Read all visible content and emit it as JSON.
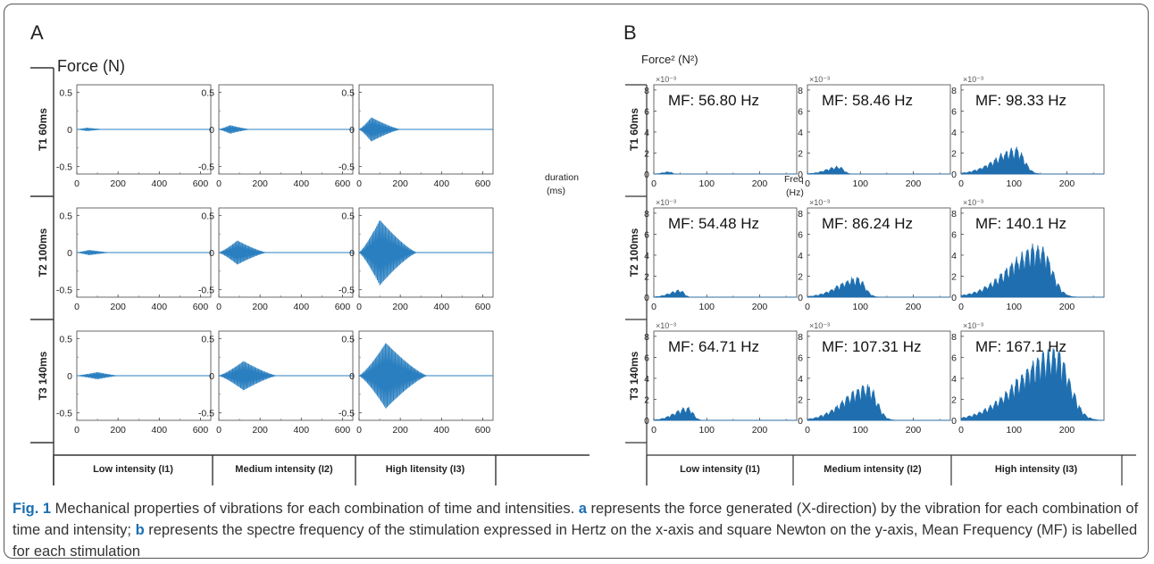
{
  "panels": {
    "a": "A",
    "b": "B"
  },
  "caption": {
    "fig": "Fig. 1",
    "lead": " Mechanical properties of vibrations for each combination of time and intensities. ",
    "a": "a",
    "a_text": " represents the force generated (X-direction) by the vibration for each combination of time and intensity; ",
    "b": "b",
    "b_text": " represents the spectre frequency of the stimulation expressed in Hertz on the x-axis and square Newton on the y-axis, Mean Frequency (MF) is labelled for each stimulation"
  },
  "chart_data": [
    {
      "type": "line",
      "panel": "A",
      "ylabel": "Force (N)",
      "xlabel": "duration (ms)",
      "xlim": [
        0,
        650
      ],
      "ylim": [
        -0.6,
        0.6
      ],
      "xticks": [
        0,
        200,
        400,
        600
      ],
      "yticks": [
        0.5,
        0,
        -0.5
      ],
      "xticks_minor": [
        100,
        300,
        500
      ],
      "yticks_minor": [
        0.25,
        -0.25
      ],
      "rows": [
        "T1 60ms",
        "T2 100ms",
        "T3 140ms"
      ],
      "columns": [
        "Low intensity (I1)",
        "Medium intensity (I2)",
        "High litensity (I3)"
      ],
      "grid": false,
      "line_color": "#2a7fc0",
      "cells": [
        [
          {
            "peak_ms": 50,
            "amplitude": 0.02,
            "end_ms": 130
          },
          {
            "peak_ms": 55,
            "amplitude": 0.06,
            "end_ms": 150
          },
          {
            "peak_ms": 60,
            "amplitude": 0.18,
            "end_ms": 200
          }
        ],
        [
          {
            "peak_ms": 60,
            "amplitude": 0.035,
            "end_ms": 160
          },
          {
            "peak_ms": 90,
            "amplitude": 0.18,
            "end_ms": 230
          },
          {
            "peak_ms": 100,
            "amplitude": 0.5,
            "end_ms": 280
          }
        ],
        [
          {
            "peak_ms": 100,
            "amplitude": 0.05,
            "end_ms": 200
          },
          {
            "peak_ms": 120,
            "amplitude": 0.22,
            "end_ms": 280
          },
          {
            "peak_ms": 130,
            "amplitude": 0.5,
            "end_ms": 330
          }
        ]
      ]
    },
    {
      "type": "area",
      "panel": "B",
      "ylabel": "Force² (N²)",
      "xlabel": "Freq (Hz)",
      "y_multiplier": "×10⁻³",
      "xlim": [
        0,
        270
      ],
      "ylim": [
        0,
        8.5
      ],
      "xticks": [
        0,
        100,
        200
      ],
      "yticks": [
        0,
        2,
        4,
        6,
        8
      ],
      "xticks_minor": [
        50,
        150,
        250
      ],
      "rows": [
        "T1 60ms",
        "T2 100ms",
        "T3 140ms"
      ],
      "columns": [
        "Low intensity (I1)",
        "Medium intensity (I2)",
        "High intensity (I3)"
      ],
      "grid": false,
      "line_color": "#1f6fb0",
      "cells": [
        [
          {
            "mf": "MF: 56.80 Hz",
            "peak_hz": 30,
            "peak_y": 0.25
          },
          {
            "mf": "MF: 58.46 Hz",
            "peak_hz": 60,
            "peak_y": 0.8
          },
          {
            "mf": "MF: 98.33 Hz",
            "peak_hz": 105,
            "peak_y": 2.6
          }
        ],
        [
          {
            "mf": "MF: 54.48 Hz",
            "peak_hz": 50,
            "peak_y": 0.75
          },
          {
            "mf": "MF: 86.24 Hz",
            "peak_hz": 95,
            "peak_y": 2.0
          },
          {
            "mf": "MF: 140.1 Hz",
            "peak_hz": 150,
            "peak_y": 5.3
          }
        ],
        [
          {
            "mf": "MF: 64.71 Hz",
            "peak_hz": 65,
            "peak_y": 1.3
          },
          {
            "mf": "MF: 107.31 Hz",
            "peak_hz": 115,
            "peak_y": 3.6
          },
          {
            "mf": "MF: 167.1 Hz",
            "peak_hz": 180,
            "peak_y": 7.3
          }
        ]
      ]
    }
  ]
}
